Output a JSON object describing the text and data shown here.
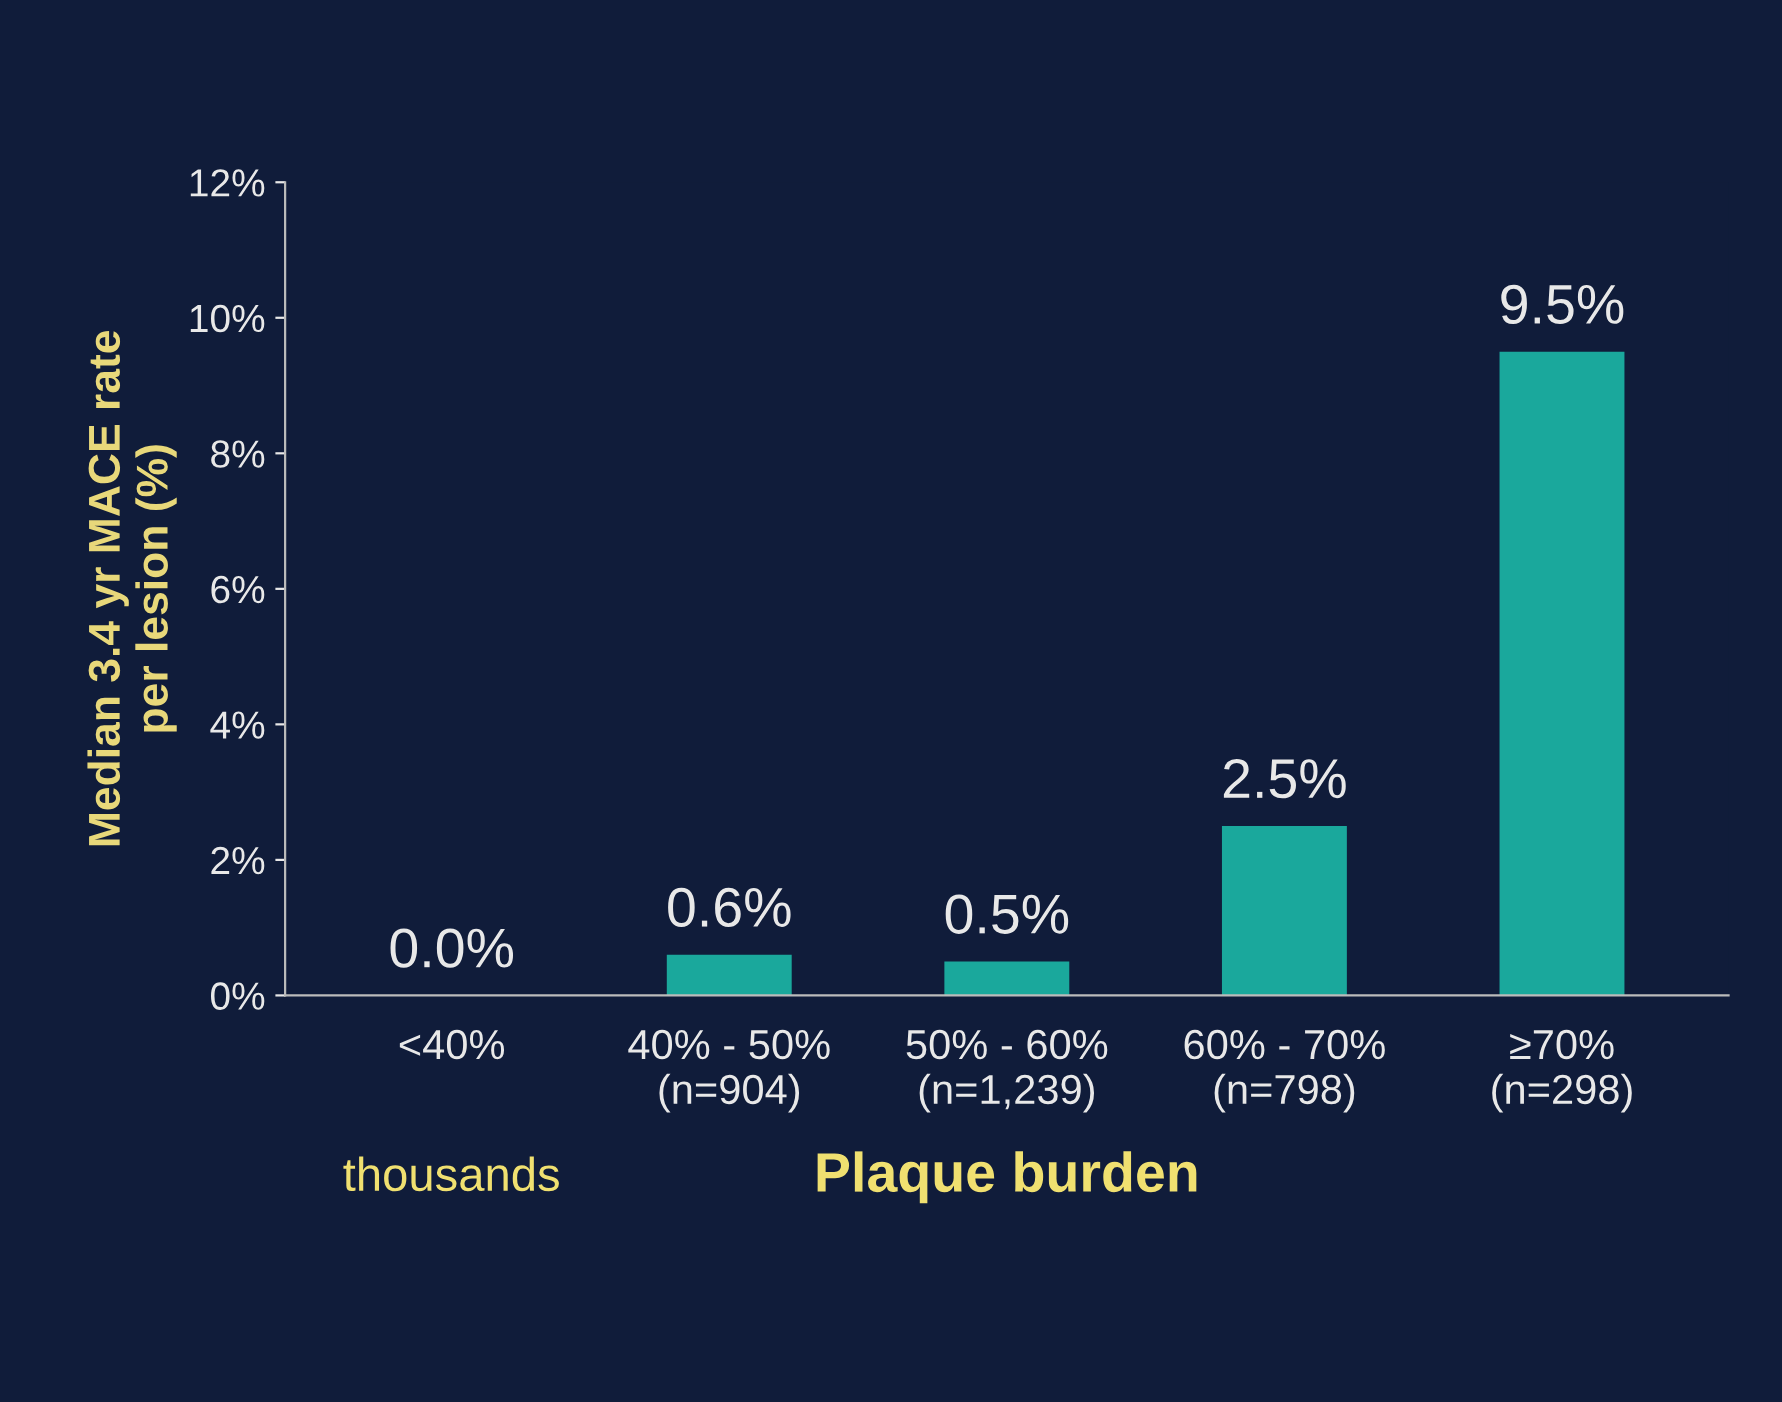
{
  "chart_data": {
    "type": "bar",
    "categories": [
      "<40%",
      "40% - 50%\n(n=904)",
      "50% - 60%\n(n=1,239)",
      "60% - 70%\n(n=798)",
      "≥70%\n(n=298)"
    ],
    "values": [
      0.0,
      0.6,
      0.5,
      2.5,
      9.5
    ],
    "value_labels": [
      "0.0%",
      "0.6%",
      "0.5%",
      "2.5%",
      "9.5%"
    ],
    "color": "#1aa89c",
    "xlabel": "Plaque burden",
    "ylabel": "Median 3.4 yr MACE rate\nper lesion (%)",
    "ylim": [
      0,
      12
    ],
    "yticks": [
      {
        "value": 0,
        "label": "0%"
      },
      {
        "value": 2,
        "label": "2%"
      },
      {
        "value": 4,
        "label": "4%"
      },
      {
        "value": 6,
        "label": "6%"
      },
      {
        "value": 8,
        "label": "8%"
      },
      {
        "value": 10,
        "label": "10%"
      },
      {
        "value": 12,
        "label": "12%"
      }
    ],
    "annotations": [
      "thousands"
    ],
    "grid": false
  }
}
